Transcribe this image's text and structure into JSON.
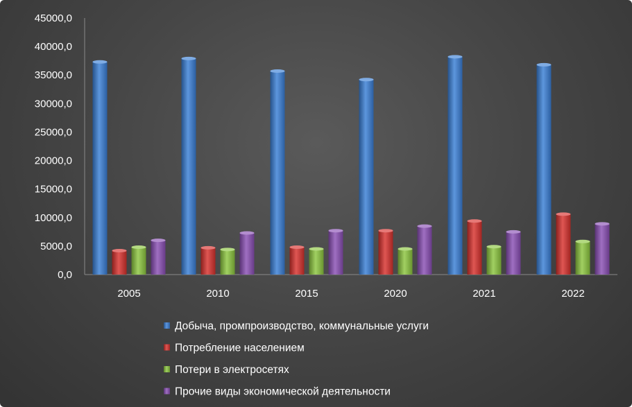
{
  "chart_data": {
    "type": "bar",
    "categories": [
      "2005",
      "2010",
      "2015",
      "2020",
      "2021",
      "2022"
    ],
    "series": [
      {
        "name": "Добыча, промпроизводство, коммунальные услуги",
        "values": [
          37300,
          37900,
          35700,
          34200,
          38200,
          36800
        ],
        "color": "#3a7fd6"
      },
      {
        "name": "Потребление населением",
        "values": [
          4200,
          4700,
          4800,
          7700,
          9400,
          10600
        ],
        "color": "#d8312d"
      },
      {
        "name": "Потери в электросетях",
        "values": [
          4800,
          4400,
          4500,
          4500,
          4900,
          5800
        ],
        "color": "#8cc63f"
      },
      {
        "name": "Прочие виды экономической деятельности",
        "values": [
          6000,
          7300,
          7700,
          8500,
          7500,
          8900
        ],
        "color": "#8a4fb5"
      }
    ],
    "yticks": [
      "0,0",
      "5000,0",
      "10000,0",
      "15000,0",
      "20000,0",
      "25000,0",
      "30000,0",
      "35000,0",
      "40000,0",
      "45000,0"
    ],
    "ylim": [
      0,
      45000
    ],
    "title": "",
    "xlabel": "",
    "ylabel": "",
    "grid": false,
    "legend_position": "bottom"
  }
}
